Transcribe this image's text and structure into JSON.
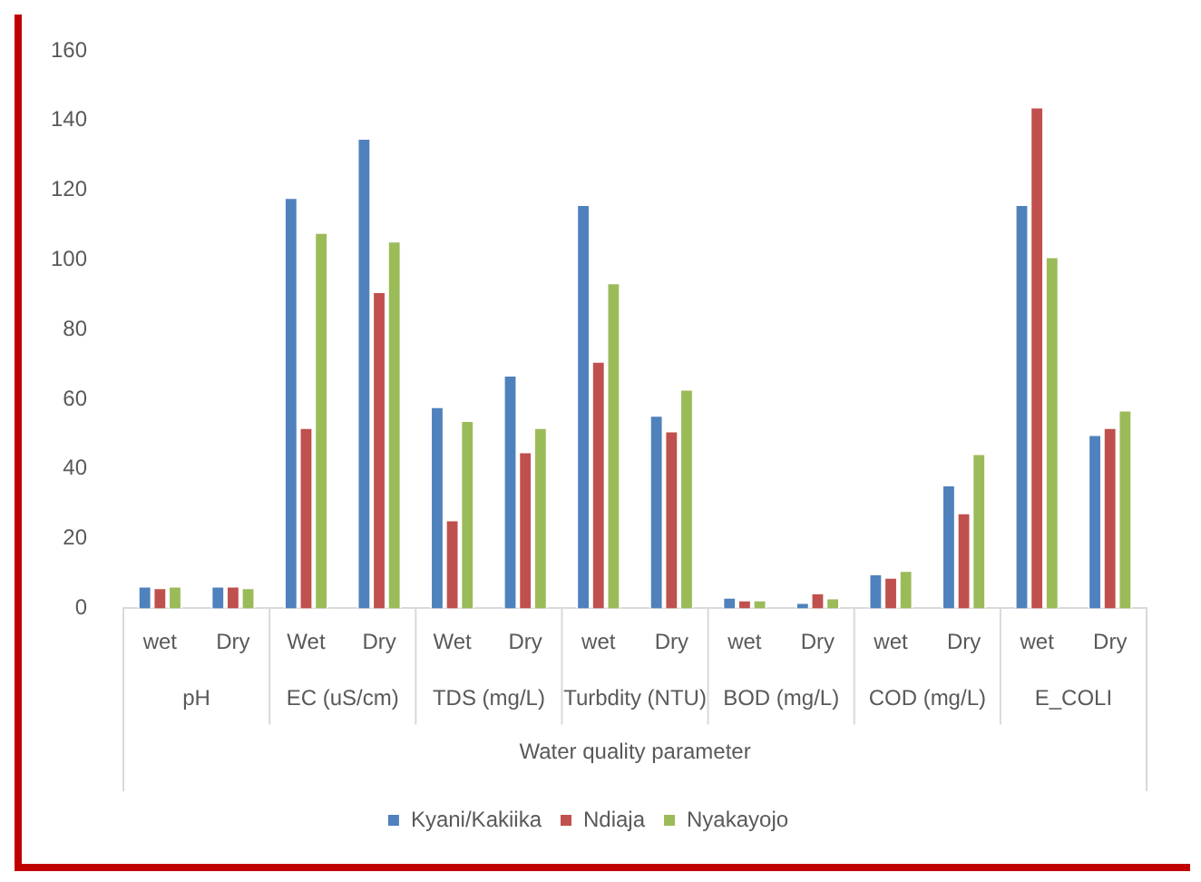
{
  "chart_data": {
    "type": "bar",
    "xlabel": "Water quality parameter",
    "categories": [
      "wet",
      "Dry",
      "Wet",
      "Dry",
      "Wet",
      "Dry",
      "wet",
      "Dry",
      "wet",
      "Dry",
      "wet",
      "Dry",
      "wet",
      "Dry"
    ],
    "annotations": [
      "pH",
      "EC (uS/cm)",
      "TDS (mg/L)",
      "Turbdity (NTU)",
      "BOD (mg/L)",
      "COD (mg/L)",
      "E_COLI"
    ],
    "series": [
      {
        "name": "Kyani/Kakiika",
        "color": "#4f81bd",
        "values": [
          6.5,
          6.5,
          118,
          135,
          58,
          67,
          116,
          55.5,
          3.3,
          1.8,
          10,
          35.5,
          116,
          50
        ]
      },
      {
        "name": "Ndiaja",
        "color": "#c0504d",
        "values": [
          6,
          6.5,
          52,
          91,
          25.5,
          45,
          71,
          51,
          2.5,
          4.5,
          9,
          27.5,
          144,
          52
        ]
      },
      {
        "name": "Nyakayojo",
        "color": "#9bbb59",
        "values": [
          6.5,
          6,
          108,
          105.5,
          54,
          52,
          93.5,
          63,
          2.5,
          3.1,
          11,
          44.5,
          101,
          57
        ]
      }
    ],
    "ylim": [
      0,
      160
    ],
    "yticks": [
      0,
      20,
      40,
      60,
      80,
      100,
      120,
      140,
      160
    ],
    "grid": false,
    "legend": "bottom"
  }
}
